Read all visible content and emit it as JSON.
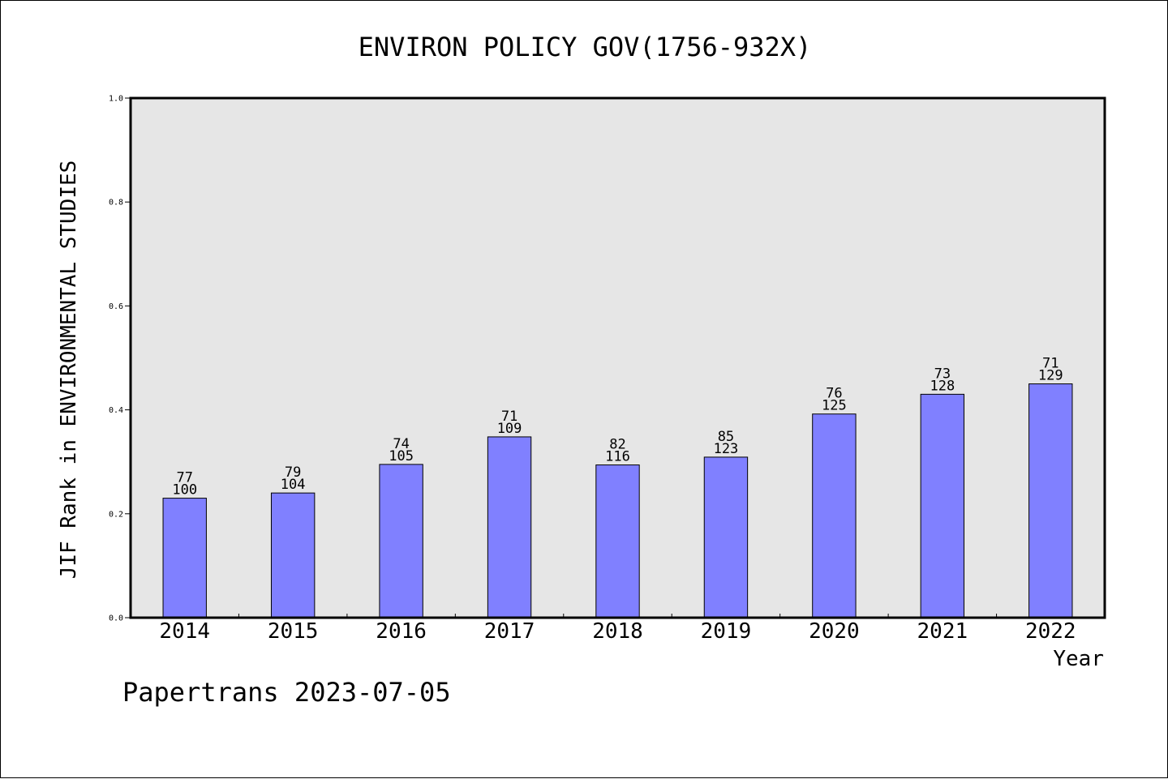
{
  "chart_data": {
    "type": "bar",
    "title": "ENVIRON POLICY GOV(1756-932X)",
    "xlabel": "Year",
    "ylabel": "JIF Rank in ENVIRONMENTAL STUDIES",
    "categories": [
      "2014",
      "2015",
      "2016",
      "2017",
      "2018",
      "2019",
      "2020",
      "2021",
      "2022"
    ],
    "values": [
      0.23,
      0.24,
      0.295,
      0.348,
      0.294,
      0.309,
      0.392,
      0.43,
      0.45
    ],
    "rank_labels": [
      "77",
      "79",
      "74",
      "71",
      "82",
      "85",
      "76",
      "73",
      "71"
    ],
    "total_labels": [
      "100",
      "104",
      "105",
      "109",
      "116",
      "123",
      "125",
      "128",
      "129"
    ],
    "ylim": [
      0,
      1.0
    ],
    "yticks": [
      "0.0",
      "0.2",
      "0.4",
      "0.6",
      "0.8",
      "1.0"
    ],
    "grid": false,
    "colors": {
      "bar": "#8080ff",
      "plot_background": "#e6e6e6"
    }
  },
  "footer": {
    "text": "Papertrans 2023-07-05"
  }
}
